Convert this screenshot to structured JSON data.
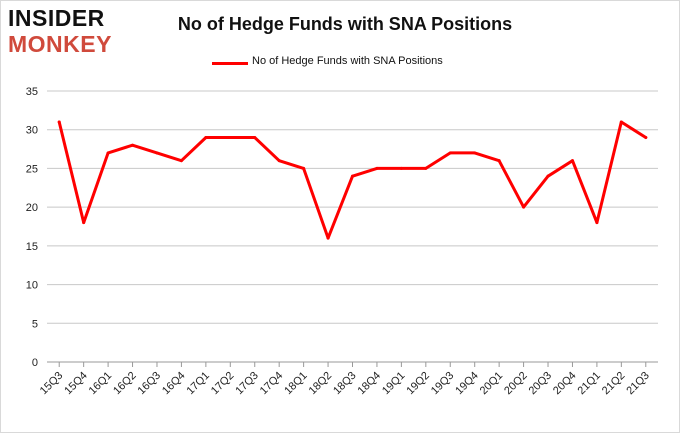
{
  "logo": {
    "line1": "INSIDER",
    "line2": "MONKEY"
  },
  "chart_data": {
    "type": "line",
    "title": "No of Hedge Funds with SNA Positions",
    "xlabel": "",
    "ylabel": "",
    "categories": [
      "15Q3",
      "15Q4",
      "16Q1",
      "16Q2",
      "16Q3",
      "16Q4",
      "17Q1",
      "17Q2",
      "17Q3",
      "17Q4",
      "18Q1",
      "18Q2",
      "18Q3",
      "18Q4",
      "19Q1",
      "19Q2",
      "19Q3",
      "19Q4",
      "20Q1",
      "20Q2",
      "20Q3",
      "20Q4",
      "21Q1",
      "21Q2",
      "21Q3"
    ],
    "series": [
      {
        "name": "No of Hedge Funds with SNA  Positions",
        "values": [
          31,
          18,
          27,
          28,
          27,
          26,
          29,
          29,
          29,
          26,
          25,
          16,
          24,
          25,
          25,
          25,
          27,
          27,
          26,
          20,
          24,
          26,
          18,
          31,
          29
        ],
        "color": "#ff0000"
      }
    ],
    "ylim": [
      0,
      35
    ],
    "yticks": [
      0,
      5,
      10,
      15,
      20,
      25,
      30,
      35
    ],
    "grid": true,
    "legend_position": "top-center"
  }
}
